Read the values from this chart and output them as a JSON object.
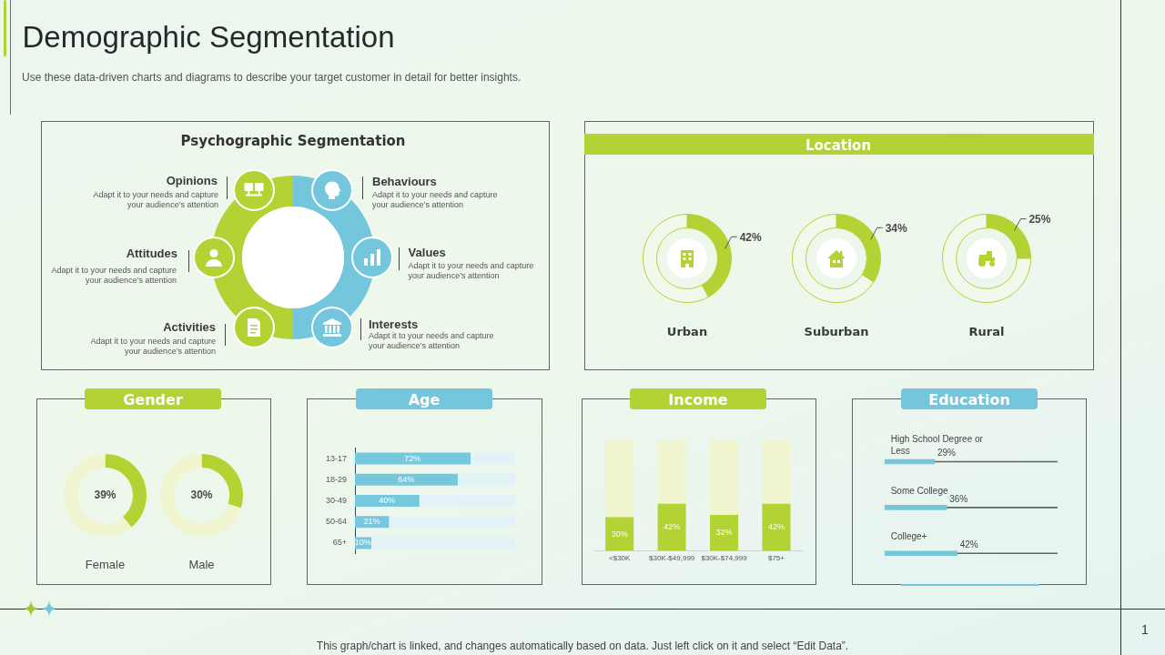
{
  "chart_data": [
    {
      "type": "other",
      "title": "Demographic Segmentation",
      "subtitle": "Use these data-driven charts and diagrams to describe your target customer in detail for better insights.",
      "annotations": [
        "This graph/chart is linked, and changes automatically based on data. Just left click on it and select “Edit Data”.",
        "1"
      ]
    },
    {
      "type": "other",
      "title": "Psychographic Segmentation",
      "annotations": [
        "Opinions",
        "Adapt it to your needs and capture your audience’s attention",
        "Behaviours",
        "Adapt it to your needs and capture your audience’s attention",
        "Attitudes",
        "Adapt it to your needs and capture your audience’s attention",
        "Values",
        "Adapt it to your needs and capture your audience’s attention",
        "Activities",
        "Adapt it to your needs and capture your audience’s attention",
        "Interests",
        "Adapt it to your needs and capture your audience’s attention"
      ]
    },
    {
      "type": "donut",
      "title": "Location",
      "categories": [
        null,
        null
      ],
      "colors": [
        "#b3d334",
        "#f2f9ec"
      ],
      "series": [
        {
          "name": "Urban",
          "values": [
            42,
            58
          ],
          "value_labels": [
            "42%",
            null
          ]
        },
        {
          "name": "Suburban",
          "values": [
            34,
            66
          ],
          "value_labels": [
            "34%",
            null
          ]
        },
        {
          "name": "Rural",
          "values": [
            25,
            75
          ],
          "value_labels": [
            "25%",
            null
          ]
        }
      ]
    },
    {
      "type": "donut",
      "title": "Gender",
      "categories": [
        null,
        null
      ],
      "colors": [
        "#b3d334",
        "#f0f5d0"
      ],
      "series": [
        {
          "name": "Female",
          "values": [
            39,
            61
          ],
          "value_labels": [
            "39%",
            null
          ]
        },
        {
          "name": "Male",
          "values": [
            30,
            70
          ],
          "value_labels": [
            "30%",
            null
          ]
        }
      ]
    },
    {
      "type": "bar",
      "title": "Age",
      "orientation": "horizontal",
      "stacked": true,
      "categories": [
        "13-17",
        "18-29",
        "30-49",
        "50-64",
        "65+"
      ],
      "series": [
        {
          "color": "#77c8de",
          "values": [
            72,
            64,
            40,
            21,
            10
          ],
          "value_labels": [
            "72%",
            "64%",
            "40%",
            "21%",
            "10%"
          ]
        },
        {
          "color": "#e2f2f6",
          "values": [
            28,
            36,
            60,
            79,
            90
          ]
        }
      ],
      "xlim": [
        0,
        100
      ],
      "tick_labels": "y"
    },
    {
      "type": "bar",
      "title": "Income",
      "stacked": true,
      "categories": [
        "<$30K",
        "$30K-$49,999",
        "$30K-$74,999",
        "$75+"
      ],
      "series": [
        {
          "color": "#b3d334",
          "values": [
            30,
            42,
            32,
            42
          ],
          "value_labels": [
            "30%",
            "42%",
            "32%",
            "42%"
          ]
        },
        {
          "color": "#f0f5d0",
          "values": [
            70,
            58,
            68,
            58
          ]
        }
      ],
      "ylim": [
        0,
        100
      ],
      "tick_labels": "x"
    },
    {
      "type": "bar",
      "title": "Education",
      "orientation": "horizontal",
      "stacked": true,
      "categories": [
        "High School Degree or Less",
        "Some College",
        "College+"
      ],
      "series": [
        {
          "color": "#78c6db",
          "values": [
            29,
            36,
            42
          ],
          "value_labels": [
            "29%",
            "36%",
            "42%"
          ]
        },
        {
          "color": "#5b6466",
          "values": [
            71,
            64,
            58
          ]
        }
      ],
      "xlim": [
        0,
        100
      ],
      "tick_labels": "y"
    }
  ]
}
